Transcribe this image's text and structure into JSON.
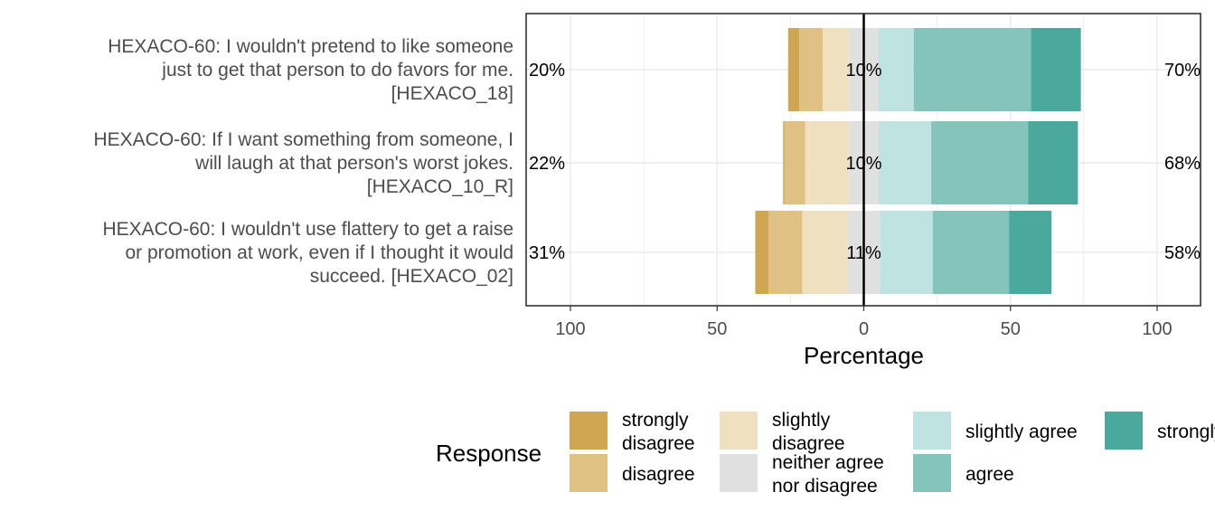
{
  "chart_data": {
    "type": "bar",
    "subtype": "diverging-stacked-likert",
    "xlabel": "Percentage",
    "xlim": [
      -100,
      100
    ],
    "x_ticks": [
      -100,
      -50,
      0,
      50,
      100
    ],
    "x_tick_labels": [
      "100",
      "50",
      "0",
      "50",
      "100"
    ],
    "grid": true,
    "legend": {
      "title": "Response",
      "position": "bottom",
      "levels": [
        {
          "label": "strongly disagree",
          "color": "#CFA753"
        },
        {
          "label": "disagree",
          "color": "#DFC283"
        },
        {
          "label": "slightly disagree",
          "color": "#EFE0C0"
        },
        {
          "label": "neither agree nor disagree",
          "color": "#E0E0E0"
        },
        {
          "label": "slightly agree",
          "color": "#BEE3E0"
        },
        {
          "label": "agree",
          "color": "#84C4BB"
        },
        {
          "label": "strongly agree",
          "color": "#4BA89C"
        }
      ]
    },
    "items": [
      {
        "label_lines": [
          "HEXACO-60: I wouldn't pretend to like someone",
          "just to get that person to do favors for me.",
          "[HEXACO_18]"
        ],
        "values": [
          3.8,
          8,
          9,
          10,
          12,
          40,
          17
        ],
        "low_label": "20%",
        "neutral_label": "10%",
        "high_label": "70%"
      },
      {
        "label_lines": [
          "HEXACO-60: If I want something from someone, I",
          "will laugh at that person's worst jokes.",
          "[HEXACO_10_R]"
        ],
        "values": [
          0.5,
          7,
          15,
          10,
          18,
          33,
          17
        ],
        "low_label": "22%",
        "neutral_label": "10%",
        "high_label": "68%"
      },
      {
        "label_lines": [
          "HEXACO-60: I wouldn't use flattery to get a raise",
          "or promotion at work, even if I thought it would",
          "succeed. [HEXACO_02]"
        ],
        "values": [
          4.5,
          11.5,
          15.5,
          11,
          18,
          26,
          14.5
        ],
        "low_label": "31%",
        "neutral_label": "11%",
        "high_label": "58%"
      }
    ]
  }
}
